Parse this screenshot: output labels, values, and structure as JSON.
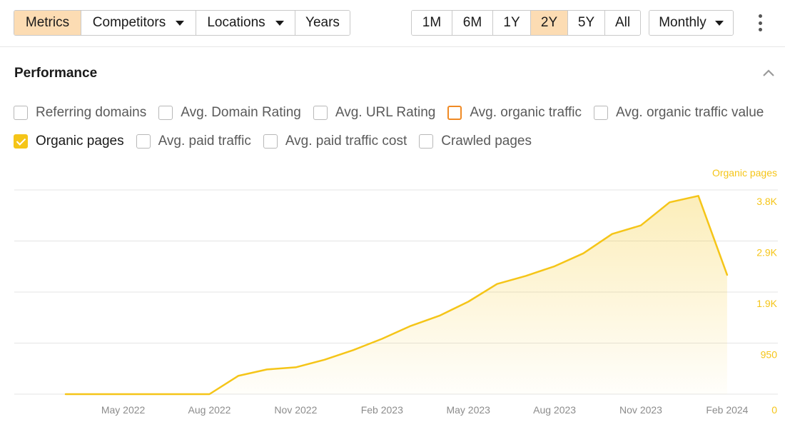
{
  "toolbar": {
    "filters": [
      {
        "label": "Metrics",
        "active": true,
        "dropdown": false
      },
      {
        "label": "Competitors",
        "active": false,
        "dropdown": true
      },
      {
        "label": "Locations",
        "active": false,
        "dropdown": true
      },
      {
        "label": "Years",
        "active": false,
        "dropdown": false
      }
    ],
    "ranges": [
      {
        "label": "1M",
        "active": false
      },
      {
        "label": "6M",
        "active": false
      },
      {
        "label": "1Y",
        "active": false
      },
      {
        "label": "2Y",
        "active": true
      },
      {
        "label": "5Y",
        "active": false
      },
      {
        "label": "All",
        "active": false
      }
    ],
    "granularity": "Monthly",
    "more_icon": "kebab-icon"
  },
  "panel": {
    "title": "Performance",
    "collapse_icon": "chevron-up-icon"
  },
  "metrics": {
    "row1": [
      {
        "label": "Referring domains",
        "checked": false,
        "style": "plain"
      },
      {
        "label": "Avg. Domain Rating",
        "checked": false,
        "style": "plain"
      },
      {
        "label": "Avg. URL Rating",
        "checked": false,
        "style": "plain"
      },
      {
        "label": "Avg. organic traffic",
        "checked": false,
        "style": "orange"
      },
      {
        "label": "Avg. organic traffic value",
        "checked": false,
        "style": "plain"
      }
    ],
    "row2": [
      {
        "label": "Organic pages",
        "checked": true,
        "style": "checked"
      },
      {
        "label": "Avg. paid traffic",
        "checked": false,
        "style": "plain"
      },
      {
        "label": "Avg. paid traffic cost",
        "checked": false,
        "style": "plain"
      },
      {
        "label": "Crawled pages",
        "checked": false,
        "style": "plain"
      }
    ]
  },
  "colors": {
    "accent": "#f5c518",
    "active_button": "#fcdcb3",
    "orange_outline": "#f08a24",
    "axis_text": "#8c8c8c",
    "y_tick_text": "#f5c518"
  },
  "chart_data": {
    "type": "area",
    "series": [
      {
        "name": "Organic pages",
        "x": [
          "2022-03-01",
          "2022-04-01",
          "2022-05-01",
          "2022-06-01",
          "2022-07-01",
          "2022-08-01",
          "2022-09-01",
          "2022-10-01",
          "2022-11-01",
          "2022-12-01",
          "2023-01-01",
          "2023-02-01",
          "2023-03-01",
          "2023-04-01",
          "2023-05-01",
          "2023-06-01",
          "2023-07-01",
          "2023-08-01",
          "2023-09-01",
          "2023-10-01",
          "2023-11-01",
          "2023-12-01",
          "2024-01-01",
          "2024-02-01"
        ],
        "values": [
          0,
          0,
          0,
          0,
          0,
          0,
          340,
          460,
          500,
          640,
          820,
          1030,
          1270,
          1460,
          1720,
          2050,
          2200,
          2380,
          2620,
          2980,
          3140,
          3570,
          3690,
          2220
        ]
      }
    ],
    "x_ticks": [
      "May 2022",
      "Aug 2022",
      "Nov 2022",
      "Feb 2023",
      "May 2023",
      "Aug 2023",
      "Nov 2023",
      "Feb 2024"
    ],
    "y_ticks": [
      "0",
      "950",
      "1.9K",
      "2.9K",
      "3.8K"
    ],
    "y_tick_values": [
      0,
      950,
      1900,
      2850,
      3800
    ],
    "ylabel": "Organic pages",
    "ylim": [
      0,
      3800
    ],
    "grid": true
  }
}
